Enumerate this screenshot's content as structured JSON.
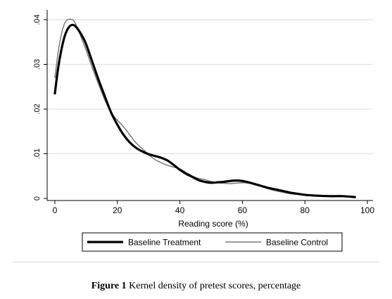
{
  "chart_data": {
    "type": "line",
    "xlabel": "Reading score (%)",
    "ylabel": "",
    "xlim": [
      -2,
      100
    ],
    "ylim": [
      0,
      0.042
    ],
    "xticks": [
      0,
      20,
      40,
      60,
      80,
      100
    ],
    "yticks": [
      0,
      0.01,
      0.02,
      0.03,
      0.04
    ],
    "ytick_labels": [
      "0",
      ".01",
      ".02",
      ".03",
      ".04"
    ],
    "grid": "horizontal",
    "legend_position": "bottom",
    "series": [
      {
        "name": "Baseline Treatment",
        "color": "#000000",
        "style": "thick",
        "x": [
          0,
          1,
          2,
          3,
          4,
          5,
          6,
          7,
          8,
          9,
          10,
          12,
          14,
          16,
          18,
          20,
          22,
          24,
          26,
          28,
          30,
          32,
          34,
          36,
          38,
          40,
          42,
          44,
          46,
          48,
          50,
          52,
          54,
          56,
          58,
          60,
          62,
          64,
          66,
          68,
          70,
          72,
          74,
          76,
          78,
          80,
          84,
          88,
          92,
          96
        ],
        "values": [
          0.0235,
          0.029,
          0.033,
          0.036,
          0.0378,
          0.0387,
          0.0388,
          0.0382,
          0.0372,
          0.036,
          0.0345,
          0.0305,
          0.0265,
          0.0228,
          0.0192,
          0.0165,
          0.0142,
          0.0125,
          0.0113,
          0.0105,
          0.0099,
          0.0095,
          0.0091,
          0.0085,
          0.0075,
          0.0064,
          0.0055,
          0.0048,
          0.0041,
          0.0037,
          0.0035,
          0.0036,
          0.0037,
          0.0039,
          0.004,
          0.0039,
          0.0036,
          0.0032,
          0.0028,
          0.0024,
          0.0021,
          0.0018,
          0.0015,
          0.0012,
          0.001,
          0.0008,
          0.0006,
          0.0005,
          0.0005,
          0.0003
        ]
      },
      {
        "name": "Baseline Control",
        "color": "#7a7a7a",
        "style": "thin",
        "x": [
          0,
          1,
          2,
          3,
          4,
          5,
          6,
          7,
          8,
          9,
          10,
          12,
          14,
          16,
          18,
          20,
          22,
          24,
          26,
          28,
          30,
          32,
          34,
          36,
          38,
          40,
          42,
          44,
          46,
          48,
          50,
          52,
          54,
          56,
          58,
          60,
          62,
          64,
          66,
          68,
          70,
          72,
          74,
          76,
          78,
          80,
          84,
          88,
          92,
          96
        ],
        "values": [
          0.027,
          0.0325,
          0.0365,
          0.039,
          0.04,
          0.0401,
          0.0398,
          0.0385,
          0.0368,
          0.035,
          0.0332,
          0.0292,
          0.0255,
          0.022,
          0.0192,
          0.0175,
          0.016,
          0.0142,
          0.0124,
          0.0111,
          0.0098,
          0.0087,
          0.008,
          0.0074,
          0.007,
          0.0066,
          0.0058,
          0.005,
          0.0045,
          0.0042,
          0.0038,
          0.0035,
          0.0034,
          0.0033,
          0.0034,
          0.0035,
          0.0034,
          0.0031,
          0.0027,
          0.0022,
          0.0018,
          0.0015,
          0.0012,
          0.001,
          0.0009,
          0.0008,
          0.0007,
          0.0006,
          0.0005,
          0.0004
        ]
      }
    ]
  },
  "caption": {
    "label": "Figure 1",
    "text": " Kernel density of pretest scores, percentage"
  }
}
